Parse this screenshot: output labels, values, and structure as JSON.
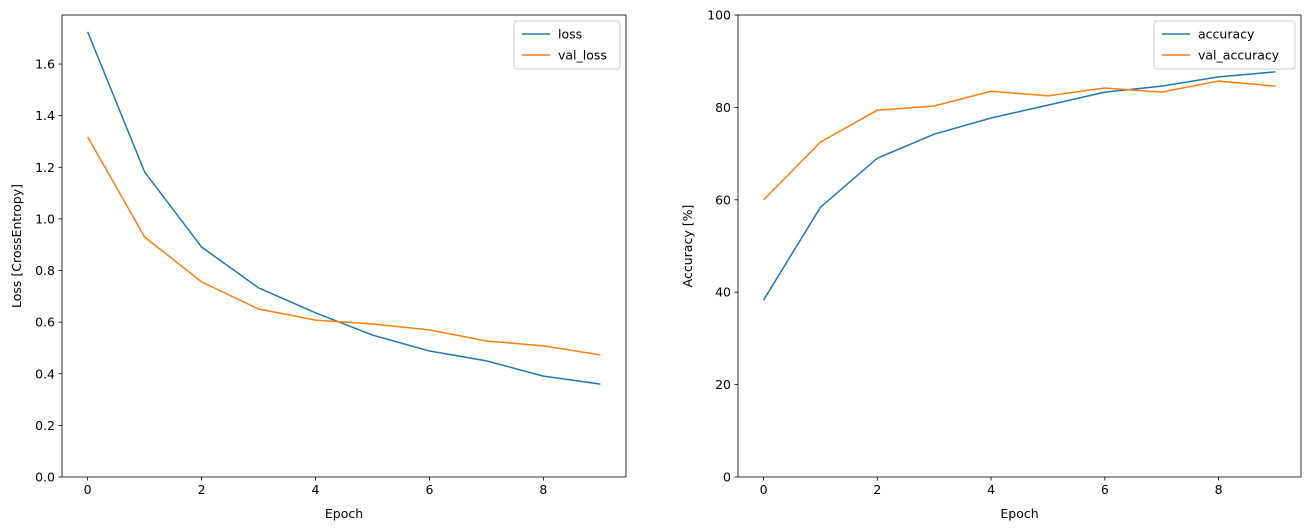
{
  "chart_data": [
    {
      "type": "line",
      "title": "",
      "xlabel": "Epoch",
      "ylabel": "Loss [CrossEntropy]",
      "x": [
        0,
        1,
        2,
        3,
        4,
        5,
        6,
        7,
        8,
        9
      ],
      "xlim": [
        -0.45,
        9.45
      ],
      "ylim": [
        0,
        1.79
      ],
      "xticks": [
        0,
        2,
        4,
        6,
        8
      ],
      "xtick_labels": [
        "0",
        "2",
        "4",
        "6",
        "8"
      ],
      "yticks": [
        0,
        0.2,
        0.4,
        0.6,
        0.8,
        1.0,
        1.2,
        1.4,
        1.6
      ],
      "ytick_labels": [
        "0.0",
        "0.2",
        "0.4",
        "0.6",
        "0.8",
        "1.0",
        "1.2",
        "1.4",
        "1.6"
      ],
      "grid": false,
      "legend": "top-right",
      "series": [
        {
          "name": "loss",
          "color": "#1f77b4",
          "values": [
            1.725,
            1.182,
            0.891,
            0.733,
            0.636,
            0.55,
            0.488,
            0.45,
            0.391,
            0.36
          ]
        },
        {
          "name": "val_loss",
          "color": "#ff7f0e",
          "values": [
            1.318,
            0.93,
            0.756,
            0.651,
            0.608,
            0.593,
            0.57,
            0.527,
            0.508,
            0.473
          ]
        }
      ]
    },
    {
      "type": "line",
      "title": "",
      "xlabel": "Epoch",
      "ylabel": "Accuracy [%]",
      "x": [
        0,
        1,
        2,
        3,
        4,
        5,
        6,
        7,
        8,
        9
      ],
      "xlim": [
        -0.45,
        9.45
      ],
      "ylim": [
        0,
        100
      ],
      "xticks": [
        0,
        2,
        4,
        6,
        8
      ],
      "xtick_labels": [
        "0",
        "2",
        "4",
        "6",
        "8"
      ],
      "yticks": [
        0,
        20,
        40,
        60,
        80,
        100
      ],
      "ytick_labels": [
        "0",
        "20",
        "40",
        "60",
        "80",
        "100"
      ],
      "grid": false,
      "legend": "top-right",
      "series": [
        {
          "name": "accuracy",
          "color": "#1f77b4",
          "values": [
            38.3,
            58.4,
            69.0,
            74.2,
            77.7,
            80.5,
            83.3,
            84.6,
            86.6,
            87.7
          ]
        },
        {
          "name": "val_accuracy",
          "color": "#ff7f0e",
          "values": [
            60.0,
            72.5,
            79.4,
            80.3,
            83.5,
            82.5,
            84.2,
            83.3,
            85.7,
            84.6
          ]
        }
      ]
    }
  ]
}
